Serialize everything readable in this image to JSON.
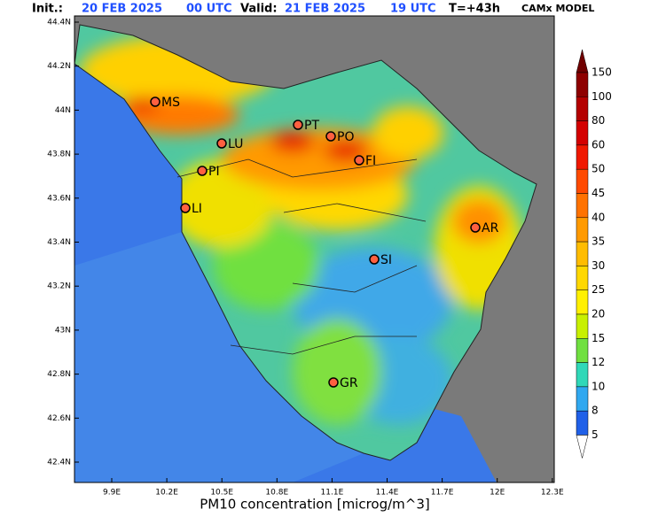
{
  "header": {
    "init_label": "Init.:",
    "init_date": "20 FEB 2025",
    "init_time": "00 UTC",
    "valid_label": "Valid:",
    "valid_date": "21 FEB 2025",
    "valid_time": "19 UTC",
    "lead": "T=+43h",
    "model": "CAMx MODEL"
  },
  "map": {
    "lat_labels": [
      "44.4N",
      "44.2N",
      "44N",
      "43.8N",
      "43.6N",
      "43.4N",
      "43.2N",
      "43N",
      "42.8N",
      "42.6N",
      "42.4N"
    ],
    "lon_labels": [
      "9.9E",
      "10.2E",
      "10.5E",
      "10.8E",
      "11.1E",
      "11.4E",
      "11.7E",
      "12E",
      "12.3E"
    ],
    "cities": [
      "MS",
      "PT",
      "LU",
      "PO",
      "FI",
      "PI",
      "LI",
      "AR",
      "SI",
      "GR"
    ],
    "xlabel": "PM10 concentration [microg/m^3]"
  },
  "colorbar": {
    "labels": [
      150,
      100,
      80,
      60,
      50,
      45,
      40,
      35,
      30,
      25,
      20,
      15,
      12,
      10,
      8,
      5
    ],
    "colors": [
      "#700000",
      "#8e0000",
      "#b40000",
      "#d40000",
      "#f01800",
      "#ff4a00",
      "#ff7200",
      "#ff9a00",
      "#ffbc00",
      "#ffd800",
      "#fff000",
      "#c8f000",
      "#70e040",
      "#30d8b8",
      "#30a8f0",
      "#2060e8",
      "#ffffff"
    ]
  }
}
